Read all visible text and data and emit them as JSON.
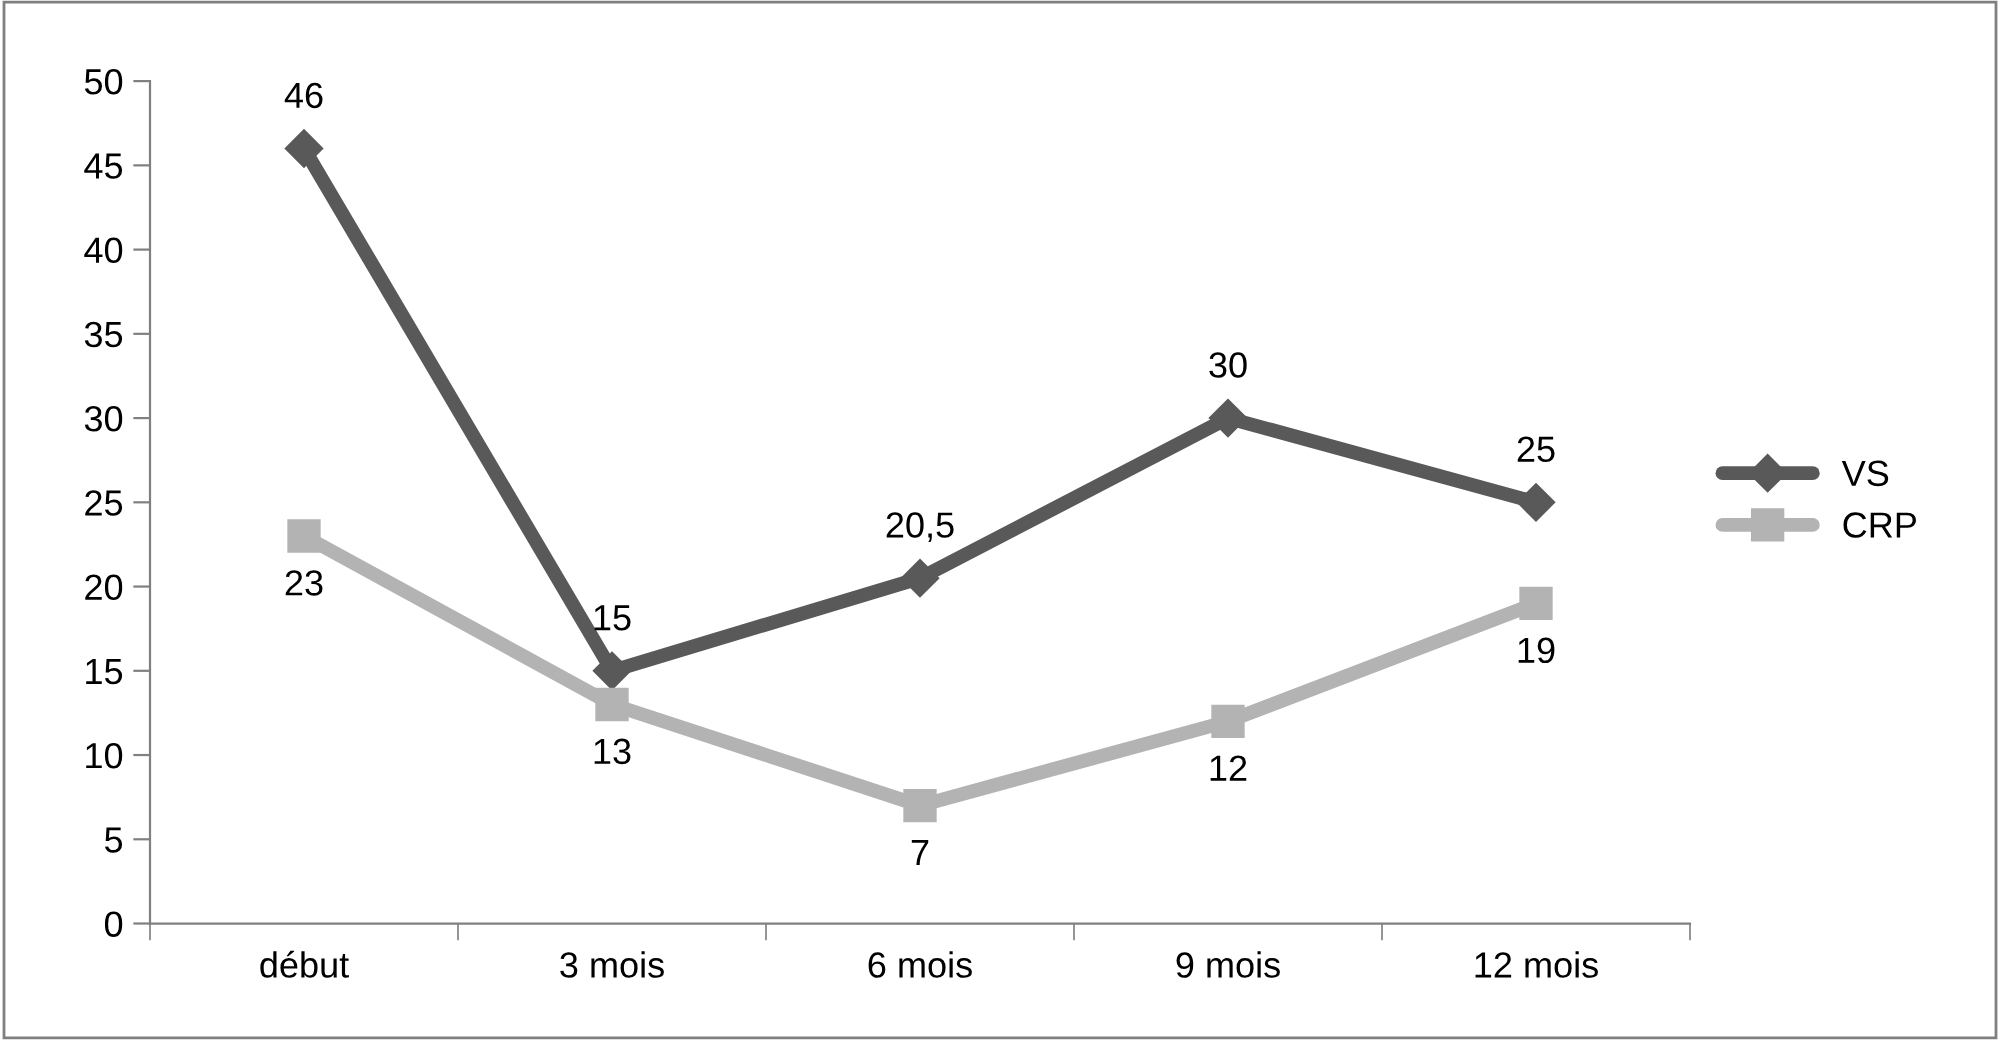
{
  "chart_data": {
    "type": "line",
    "categories": [
      "début",
      "3 mois",
      "6 mois",
      "9 mois",
      "12 mois"
    ],
    "series": [
      {
        "name": "VS",
        "color": "#595959",
        "marker": "diamond",
        "values": [
          46,
          15,
          20.5,
          30,
          25
        ],
        "value_labels": [
          "46",
          "15",
          "20,5",
          "30",
          "25"
        ]
      },
      {
        "name": "CRP",
        "color": "#b3b3b3",
        "marker": "square",
        "values": [
          23,
          13,
          7,
          12,
          19
        ],
        "value_labels": [
          "23",
          "13",
          "7",
          "12",
          "19"
        ]
      }
    ],
    "ylim": [
      0,
      50
    ],
    "yticks": [
      0,
      5,
      10,
      15,
      20,
      25,
      30,
      35,
      40,
      45,
      50
    ],
    "grid": false,
    "legend": "right",
    "line_style": "solid"
  }
}
